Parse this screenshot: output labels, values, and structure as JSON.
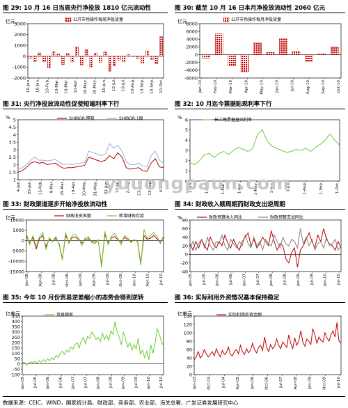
{
  "watermark": "yuuongpaun.com",
  "footnote": "数据来源：CEIC、WIND，国家统计局、财政部、商务部、农业部、海关总署、广发证券发展研究中心",
  "captions": [
    {
      "num": "图 29:",
      "text": "10 月 16 日当周央行净投放 1810 亿元流动性"
    },
    {
      "num": "图 30:",
      "text": "截至 10 月 16 日本月净投放流动性 2060 亿元"
    },
    {
      "num": "图 31:",
      "text": "央行净投放流动性促使短端利率下行"
    },
    {
      "num": "图 32:",
      "text": "10 月迄今票据贴现利率下行"
    },
    {
      "num": "图 33:",
      "text": "财政渠道逐步开始净投放流动性"
    },
    {
      "num": "图 34:",
      "text": "财政收入顺周期而财政支出逆周期"
    },
    {
      "num": "图 35:",
      "text": "今年 10 月份贸易逆差缩小的态势会得到逆转"
    },
    {
      "num": "图 36:",
      "text": "实际利用外资情况基本保持稳定"
    }
  ],
  "colors": {
    "red": "#c00000",
    "blue": "#8eb4e3",
    "green": "#66cc33",
    "black": "#000000",
    "grey": "#808080",
    "darkred": "#c00000"
  },
  "chart_data": [
    {
      "id": "c29",
      "type": "bar",
      "unit_label": "亿元",
      "ylim": [
        -2000,
        3000
      ],
      "yticks": [
        -2000,
        -1000,
        0,
        1000,
        2000,
        3000
      ],
      "series": [
        {
          "name": "公开市场操作每周净投放量",
          "color": "#c00000",
          "pattern": "hatch",
          "values": [
            -180,
            -480,
            310,
            -500,
            -1050,
            420,
            200,
            -760,
            250,
            -520,
            880,
            -800,
            600,
            -980,
            300,
            -560,
            400,
            -1380,
            -880,
            -350,
            -520,
            150,
            -40,
            -200,
            -620,
            500,
            -300,
            -700,
            1810
          ]
        }
      ],
      "xticks": [
        "10-Jan",
        "10-Jan",
        "10-Feb",
        "10-Mar",
        "10-Mar",
        "10-Apr",
        "10-May",
        "10-May",
        "10-Jun",
        "10-Jul",
        "10-Jul",
        "10-Aug",
        "10-Sep",
        "10-Sep",
        "10-Oct"
      ]
    },
    {
      "id": "c30",
      "type": "bar",
      "unit_label": "亿元",
      "ylim": [
        -6000,
        8000
      ],
      "yticks": [
        -6000,
        -4000,
        -2000,
        0,
        2000,
        4000,
        6000,
        8000
      ],
      "series": [
        {
          "name": "公开市场操作每月净投放量",
          "color": "#c00000",
          "pattern": "hatch",
          "values": [
            -900,
            5400,
            -2800,
            -4400,
            3100,
            600,
            4200,
            800,
            -1700,
            200,
            2060
          ]
        }
      ],
      "xticks": [
        "Jan-10",
        "Feb-10",
        "Mar-10",
        "Apr-10",
        "May-10",
        "Jun-10",
        "Jul-10",
        "Aug-10",
        "Sep-10",
        "Oct-10"
      ]
    },
    {
      "id": "c31",
      "type": "line",
      "unit_label": "%",
      "ylim": [
        1.0,
        5.0
      ],
      "yticks": [
        1.0,
        1.5,
        2.0,
        2.5,
        3.0,
        3.5,
        4.0,
        4.5,
        5.0
      ],
      "series": [
        {
          "name": "SHIBOR:隔夜",
          "color": "#c00000",
          "values": [
            1.5,
            1.6,
            1.8,
            2.1,
            2.2,
            2.1,
            2.15,
            2.0,
            2.05,
            2.1,
            1.9,
            1.75,
            1.8,
            1.8,
            1.85,
            1.9,
            1.95,
            2.5,
            2.4,
            2.3,
            2.2,
            2.3,
            2.6,
            2.4,
            2.8,
            2.5,
            1.8,
            1.7,
            1.75,
            1.8,
            1.6,
            1.55,
            2.1,
            2.4,
            1.85,
            1.8
          ]
        },
        {
          "name": "SHIBOR:1周",
          "color": "#8eb4e3",
          "values": [
            1.7,
            1.8,
            2.0,
            2.3,
            2.5,
            2.3,
            2.3,
            2.25,
            2.3,
            2.35,
            2.15,
            2.0,
            2.05,
            2.0,
            2.05,
            2.1,
            2.15,
            2.9,
            2.8,
            2.7,
            2.6,
            2.7,
            3.4,
            3.1,
            3.3,
            2.9,
            2.2,
            2.0,
            2.0,
            2.1,
            1.9,
            1.85,
            2.6,
            2.9,
            2.3,
            2.1
          ]
        }
      ],
      "xticks": [
        "4-Jan",
        "25-Jan",
        "15-Feb",
        "8-Mar",
        "29-Mar",
        "19-Apr",
        "10-May",
        "31-May",
        "21-Jun",
        "12-Jul",
        "2-Aug",
        "23-Aug",
        "13-Sep",
        "4-Oct"
      ]
    },
    {
      "id": "c32",
      "type": "line",
      "unit_label": "%",
      "ylim": [
        0,
        6
      ],
      "yticks": [
        0,
        1,
        2,
        3,
        4,
        5,
        6
      ],
      "series": [
        {
          "name": "长三角票据直贴利率",
          "color": "#66cc33",
          "values": [
            1.8,
            1.6,
            2.0,
            2.6,
            2.7,
            2.3,
            2.7,
            2.9,
            2.6,
            3.0,
            3.3,
            3.1,
            2.9,
            3.2,
            4.6,
            5.0,
            3.9,
            3.4,
            3.2,
            3.0,
            2.8,
            2.9,
            3.1,
            3.0,
            3.2,
            2.9,
            3.3,
            3.6,
            4.0,
            4.6,
            4.0,
            3.5
          ]
        }
      ],
      "xticks": [
        "1-Jan",
        "1-Feb",
        "1-Mar",
        "1-Apr",
        "1-May",
        "1-Jun",
        "1-Jul",
        "1-Aug",
        "1-Sep",
        "1-Oct"
      ]
    },
    {
      "id": "c33",
      "type": "line",
      "unit_label": "亿元",
      "ylim": [
        -15000,
        10000
      ],
      "yticks": [
        -15000,
        -10000,
        -5000,
        0,
        5000,
        10000
      ],
      "series": [
        {
          "name": "财政收支差额",
          "color": "#c00000",
          "values": [
            2000,
            -1000,
            1500,
            -4000,
            1000,
            2500,
            -3000,
            800,
            -500,
            1200,
            -1500,
            -9000,
            2500,
            -800,
            1500,
            1800,
            500,
            -1200,
            600,
            1000,
            -500,
            -700,
            200,
            -12000,
            3000,
            -1000,
            1200,
            2000,
            500,
            -800,
            1500,
            700,
            -300,
            200,
            -200,
            -11000,
            2500,
            600,
            1200,
            2500,
            900,
            -800,
            1600
          ]
        },
        {
          "name": "新增财政存款",
          "color": "#66cc33",
          "values": [
            3500,
            -2000,
            2500,
            -3000,
            2000,
            4000,
            -4500,
            1500,
            -500,
            2000,
            -2000,
            -9500,
            4000,
            -1500,
            2500,
            3000,
            1000,
            -2500,
            1500,
            2000,
            -1000,
            -1500,
            500,
            -13000,
            4500,
            -2000,
            2000,
            3500,
            1000,
            -2000,
            2500,
            1500,
            -1000,
            500,
            -500,
            -12000,
            5500,
            1000,
            2500,
            4000,
            2000,
            -1500,
            2500
          ]
        }
      ],
      "xticks": [
        "Jan-08",
        "Apr-08",
        "Jul-08",
        "Oct-08",
        "Jan-09",
        "Apr-09",
        "Jul-09",
        "Oct-09",
        "Jan-10",
        "Apr-10",
        "Jul-10"
      ]
    },
    {
      "id": "c34",
      "type": "line",
      "unit_label": "%",
      "ylim": [
        -40,
        80
      ],
      "yticks": [
        -40,
        -20,
        0,
        20,
        40,
        60,
        80
      ],
      "series": [
        {
          "name": "财政预算收入同比",
          "color": "#c00000",
          "values": [
            25,
            10,
            30,
            15,
            35,
            20,
            10,
            40,
            25,
            15,
            30,
            20,
            45,
            25,
            15,
            35,
            20,
            10,
            30,
            40,
            50,
            20,
            35,
            15,
            25,
            40,
            30,
            20,
            55,
            30,
            10,
            25,
            20,
            -10,
            -20,
            5,
            15,
            -30,
            10,
            20,
            35,
            50,
            30,
            15,
            45,
            30,
            60,
            35,
            25,
            20,
            10,
            30,
            15
          ]
        },
        {
          "name": "财政预算支出同比",
          "color": "#808080",
          "values": [
            15,
            30,
            10,
            25,
            35,
            15,
            40,
            20,
            10,
            30,
            25,
            45,
            20,
            10,
            35,
            25,
            15,
            30,
            20,
            45,
            25,
            15,
            40,
            20,
            30,
            10,
            35,
            25,
            20,
            45,
            30,
            15,
            40,
            25,
            20,
            35,
            30,
            15,
            60,
            25,
            40,
            20,
            35,
            10,
            25,
            30,
            15,
            40,
            20,
            25,
            35,
            10,
            20
          ]
        }
      ],
      "xticks": [
        "Jan-05",
        "Jul-05",
        "Jan-06",
        "Jul-06",
        "Jan-07",
        "Jul-07",
        "Jan-08",
        "Jul-08",
        "Jan-09",
        "Jul-09",
        "Jan-10",
        "Jul-10"
      ]
    },
    {
      "id": "c35",
      "type": "line",
      "unit_label": "亿美元",
      "ylim": [
        -100,
        450
      ],
      "yticks": [
        -100,
        -50,
        0,
        50,
        100,
        150,
        200,
        250,
        300,
        350,
        400,
        450
      ],
      "series": [
        {
          "name": "贸易顺差",
          "color": "#66cc33",
          "values": [
            5,
            15,
            -10,
            8,
            20,
            10,
            25,
            5,
            30,
            15,
            40,
            20,
            50,
            30,
            60,
            40,
            80,
            60,
            100,
            120,
            90,
            130,
            110,
            160,
            140,
            180,
            200,
            150,
            220,
            250,
            190,
            260,
            240,
            300,
            270,
            230,
            250,
            210,
            290,
            230,
            270,
            220,
            310,
            280,
            400,
            300,
            250,
            180,
            300,
            230,
            160,
            200,
            130,
            180,
            140,
            240,
            90,
            130,
            60,
            120,
            40,
            180,
            100,
            200,
            330,
            280,
            210,
            170
          ]
        }
      ],
      "xticks": [
        "Jan-05",
        "Jul-05",
        "Jan-06",
        "Jul-06",
        "Jan-07",
        "Jul-07",
        "Jan-08",
        "Jul-08",
        "Jan-09",
        "Jul-09",
        "Jan-10",
        "Jul-10"
      ]
    },
    {
      "id": "c36",
      "type": "line",
      "unit_label": "亿美元",
      "ylim": [
        0,
        140
      ],
      "yticks": [
        0,
        20,
        40,
        60,
        80,
        100,
        120,
        140
      ],
      "series": [
        {
          "name": "实际利用外资金额",
          "color": "#c00000",
          "values": [
            35,
            42,
            55,
            40,
            45,
            60,
            50,
            42,
            48,
            55,
            45,
            62,
            50,
            42,
            58,
            48,
            52,
            66,
            48,
            45,
            55,
            60,
            50,
            70,
            55,
            48,
            62,
            52,
            58,
            75,
            60,
            52,
            65,
            70,
            58,
            90,
            65,
            55,
            72,
            62,
            68,
            85,
            70,
            62,
            78,
            72,
            65,
            95,
            75,
            62,
            88,
            70,
            80,
            105,
            78,
            68,
            85,
            80,
            72,
            110,
            95,
            75,
            90,
            82,
            78,
            100,
            88,
            80,
            95,
            105,
            90,
            125,
            80,
            75
          ]
        }
      ],
      "xticks": [
        "Jan-03",
        "Oct-03",
        "Jul-04",
        "Apr-05",
        "Jan-06",
        "Oct-06",
        "Jul-07",
        "Apr-08",
        "Jan-09",
        "Oct-09",
        "Jul-10"
      ]
    }
  ]
}
